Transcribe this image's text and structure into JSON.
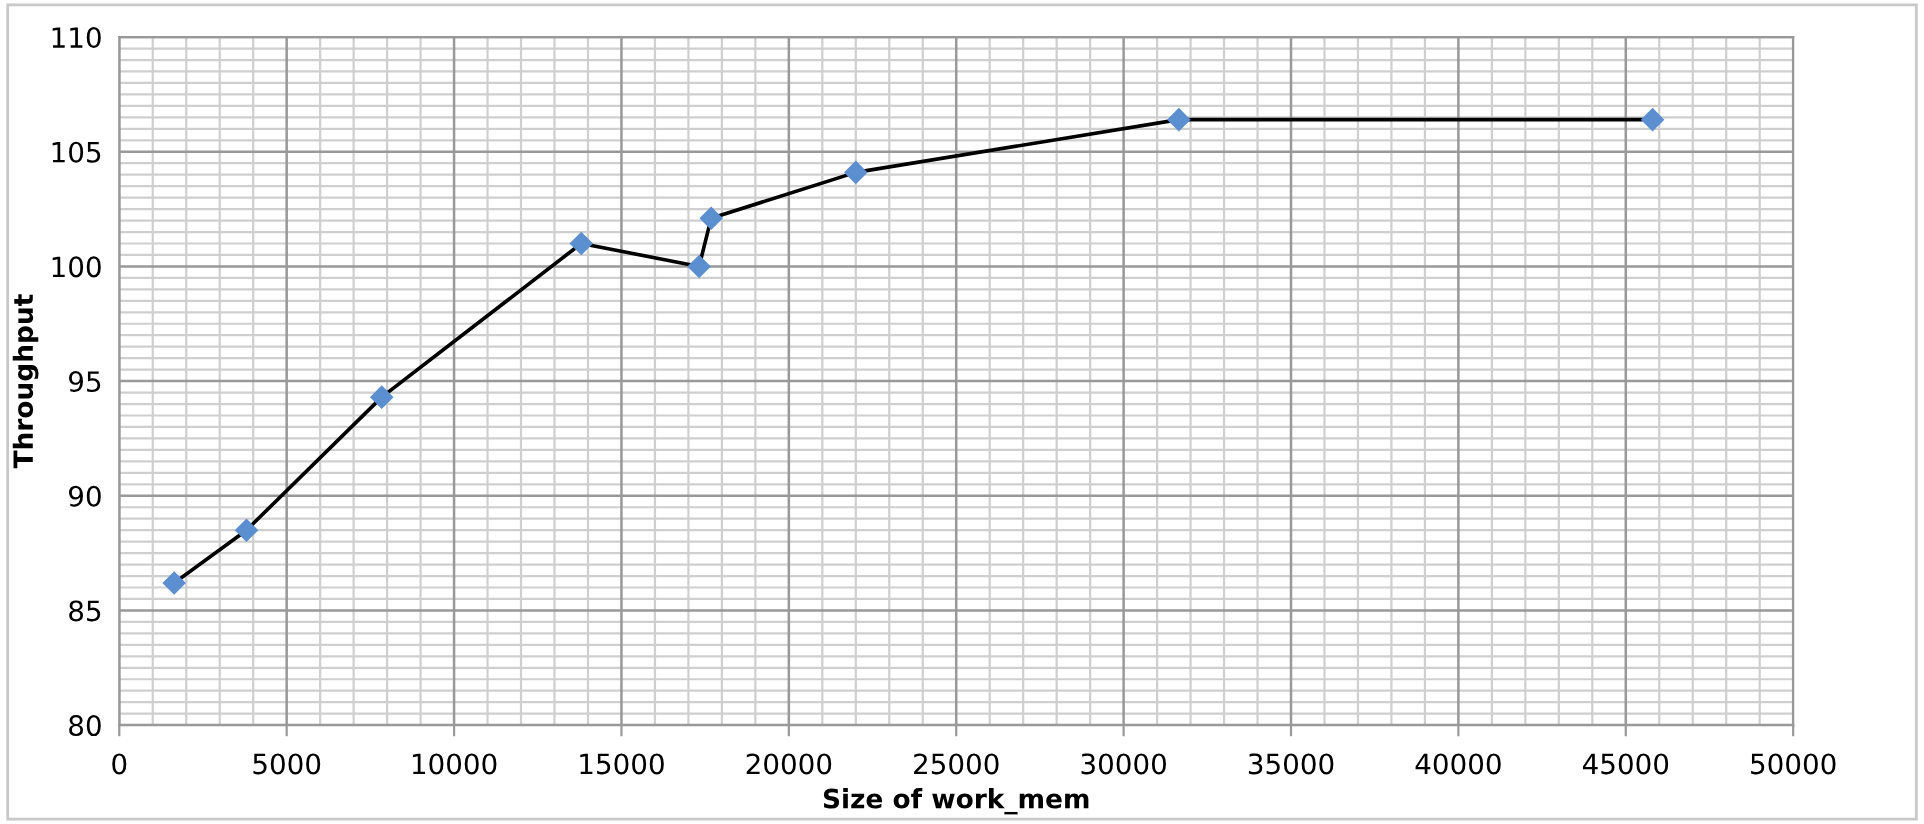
{
  "chart_data": {
    "type": "line",
    "xlabel": "Size of work_mem",
    "ylabel": "Throughput",
    "x": [
      1640,
      3800,
      7840,
      13800,
      17320,
      17680,
      22000,
      31650,
      45800
    ],
    "series": [
      {
        "color": "#5b8fd0",
        "values": [
          86.2,
          88.5,
          94.3,
          101.0,
          100.0,
          102.1,
          104.1,
          106.4,
          106.4
        ]
      }
    ],
    "xlim": [
      0,
      50000
    ],
    "xticks": [
      0,
      5000,
      10000,
      15000,
      20000,
      25000,
      30000,
      35000,
      40000,
      45000,
      50000
    ],
    "ylim": [
      80,
      110
    ],
    "yticks": [
      80,
      85,
      90,
      95,
      100,
      105,
      110
    ],
    "grid": true,
    "marker": "diamond",
    "line_style": "solid",
    "legend": false
  }
}
